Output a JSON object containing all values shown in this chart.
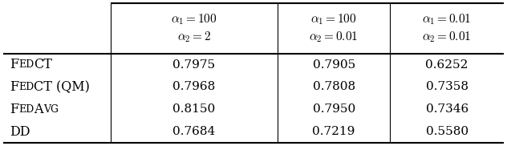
{
  "col_headers_latex": [
    [
      "$\\alpha_1 = 100$",
      "$\\alpha_2 = 2$"
    ],
    [
      "$\\alpha_1 = 100$",
      "$\\alpha_2 = 0.01$"
    ],
    [
      "$\\alpha_1 = 0.01$",
      "$\\alpha_2 = 0.01$"
    ]
  ],
  "row_label_parts": [
    [
      [
        "F",
        true
      ],
      [
        "ED",
        false
      ],
      [
        "CT",
        true
      ]
    ],
    [
      [
        "F",
        true
      ],
      [
        "ED",
        false
      ],
      [
        "CT (QM)",
        true
      ]
    ],
    [
      [
        "F",
        true
      ],
      [
        "ED",
        false
      ],
      [
        "A",
        true
      ],
      [
        "VG",
        false
      ]
    ],
    [
      [
        "DD",
        true
      ]
    ]
  ],
  "values": [
    [
      "0.7975",
      "0.7905",
      "0.6252"
    ],
    [
      "0.7968",
      "0.7808",
      "0.7358"
    ],
    [
      "0.8150",
      "0.7950",
      "0.7346"
    ],
    [
      "0.7684",
      "0.7219",
      "0.5580"
    ]
  ],
  "figsize": [
    6.32,
    1.82
  ],
  "dpi": 100,
  "header_fontsize": 11.0,
  "data_fontsize": 11.0,
  "label_fontsize_large": 11.5,
  "label_fontsize_small": 9.0,
  "col_splits": [
    0.215,
    0.548,
    0.773
  ],
  "outer_lw": 1.5,
  "inner_lw": 0.8
}
